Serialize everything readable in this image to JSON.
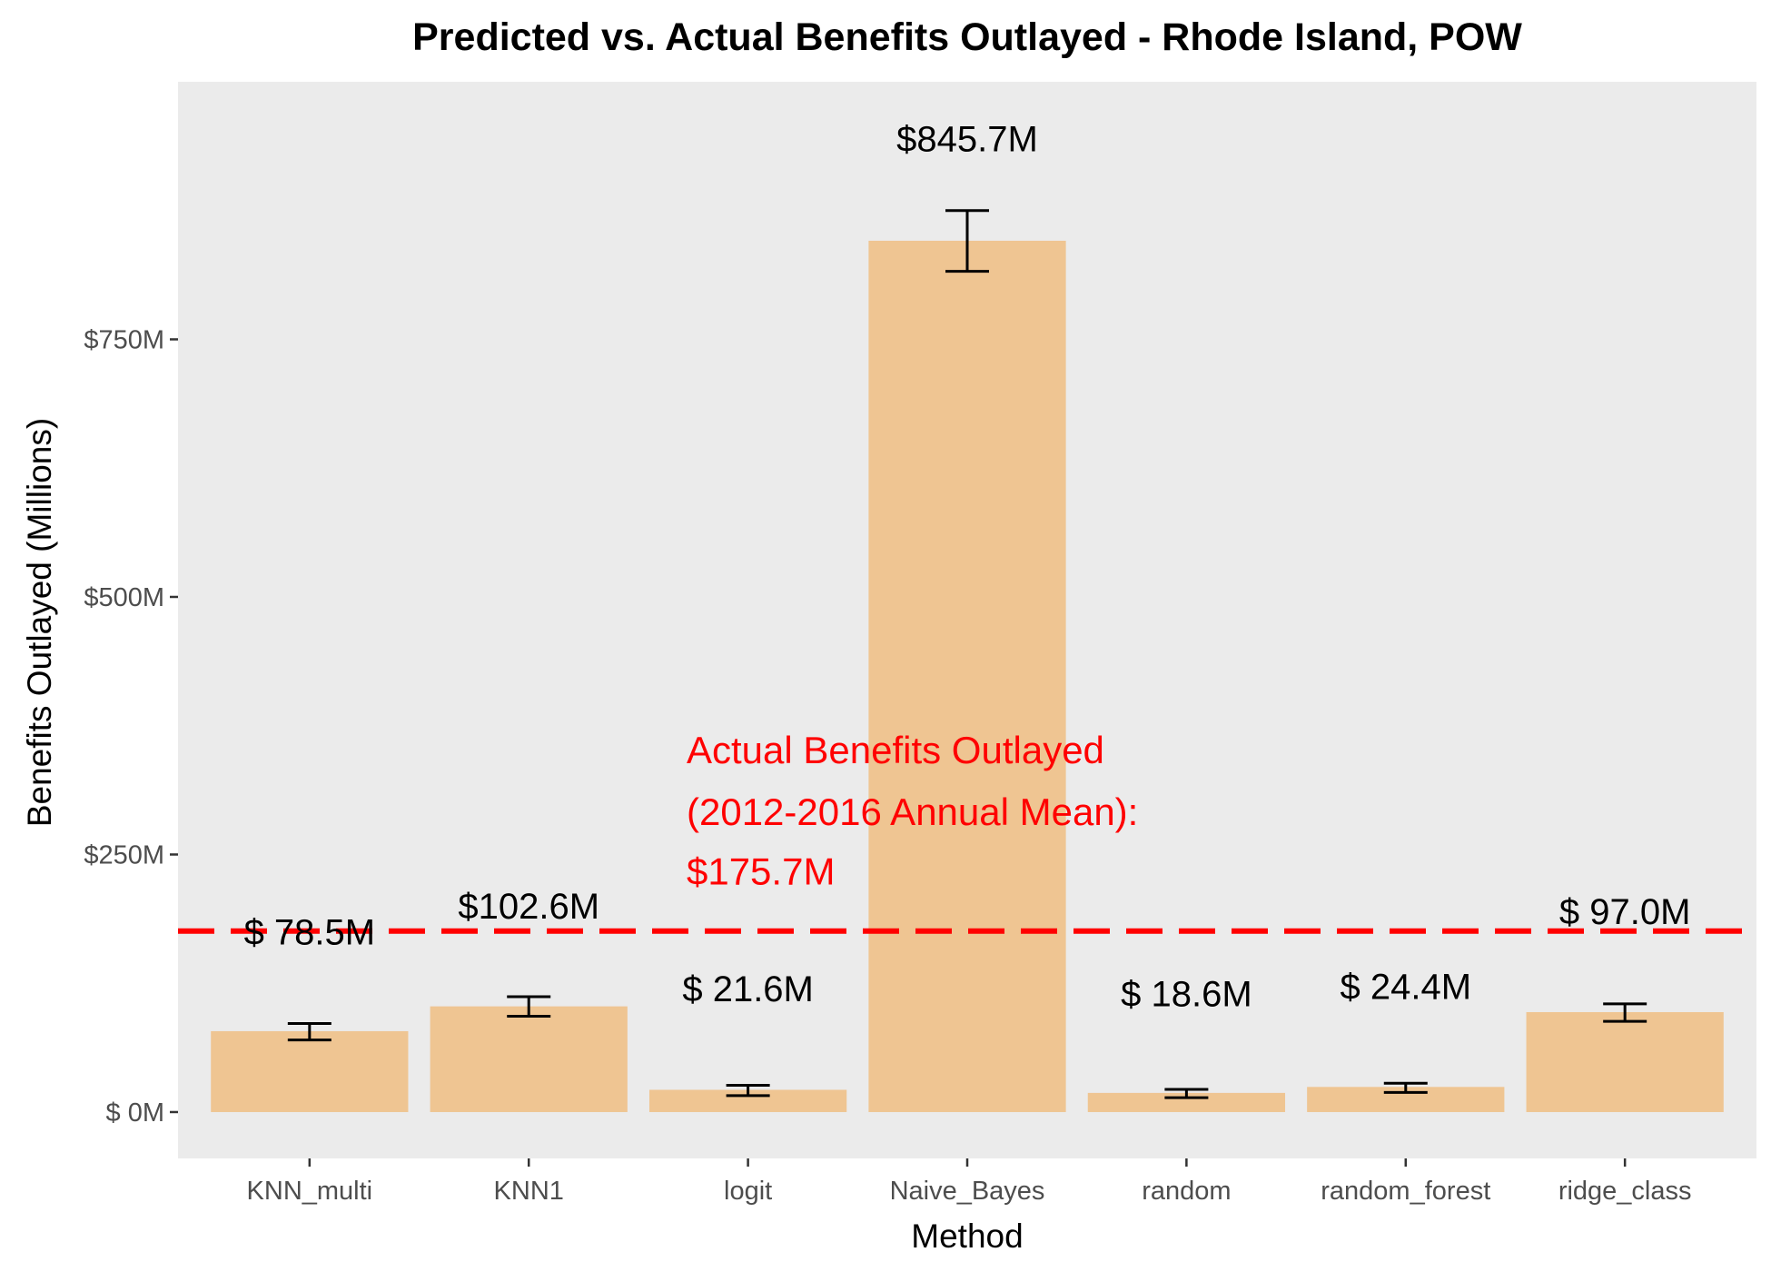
{
  "chart_data": {
    "type": "bar",
    "title": "Predicted vs. Actual Benefits Outlayed - Rhode Island, POW",
    "xlabel": "Method",
    "ylabel": "Benefits Outlayed (Millions)",
    "categories": [
      "KNN_multi",
      "KNN1",
      "logit",
      "Naive_Bayes",
      "random",
      "random_forest",
      "ridge_class"
    ],
    "values": [
      78.5,
      102.6,
      21.6,
      845.7,
      18.6,
      24.4,
      97.0
    ],
    "value_labels": [
      "$ 78.5M",
      "$102.6M",
      "$ 21.6M",
      "$845.7M",
      "$ 18.6M",
      "$ 24.4M",
      "$ 97.0M"
    ],
    "label_y": [
      175,
      200,
      120,
      945,
      115,
      122,
      195
    ],
    "error_low": [
      70,
      93,
      16,
      816,
      14,
      19,
      88
    ],
    "error_high": [
      86,
      112,
      26,
      875,
      22,
      28,
      105
    ],
    "y_ticks": [
      0,
      250,
      500,
      750
    ],
    "y_tick_labels": [
      "$  0M",
      "$250M",
      "$500M",
      "$750M"
    ],
    "ylim": [
      -45,
      1000
    ],
    "grid": false,
    "bar_color": "#efc592",
    "panel_color": "#ebebeb",
    "reference_line": {
      "value": 175.7,
      "color": "#ff0000",
      "style": "dashed",
      "label_lines": [
        "Actual Benefits Outlayed",
        " (2012-2016 Annual Mean):",
        "$175.7M"
      ],
      "label_y": [
        352,
        292,
        234
      ]
    }
  }
}
